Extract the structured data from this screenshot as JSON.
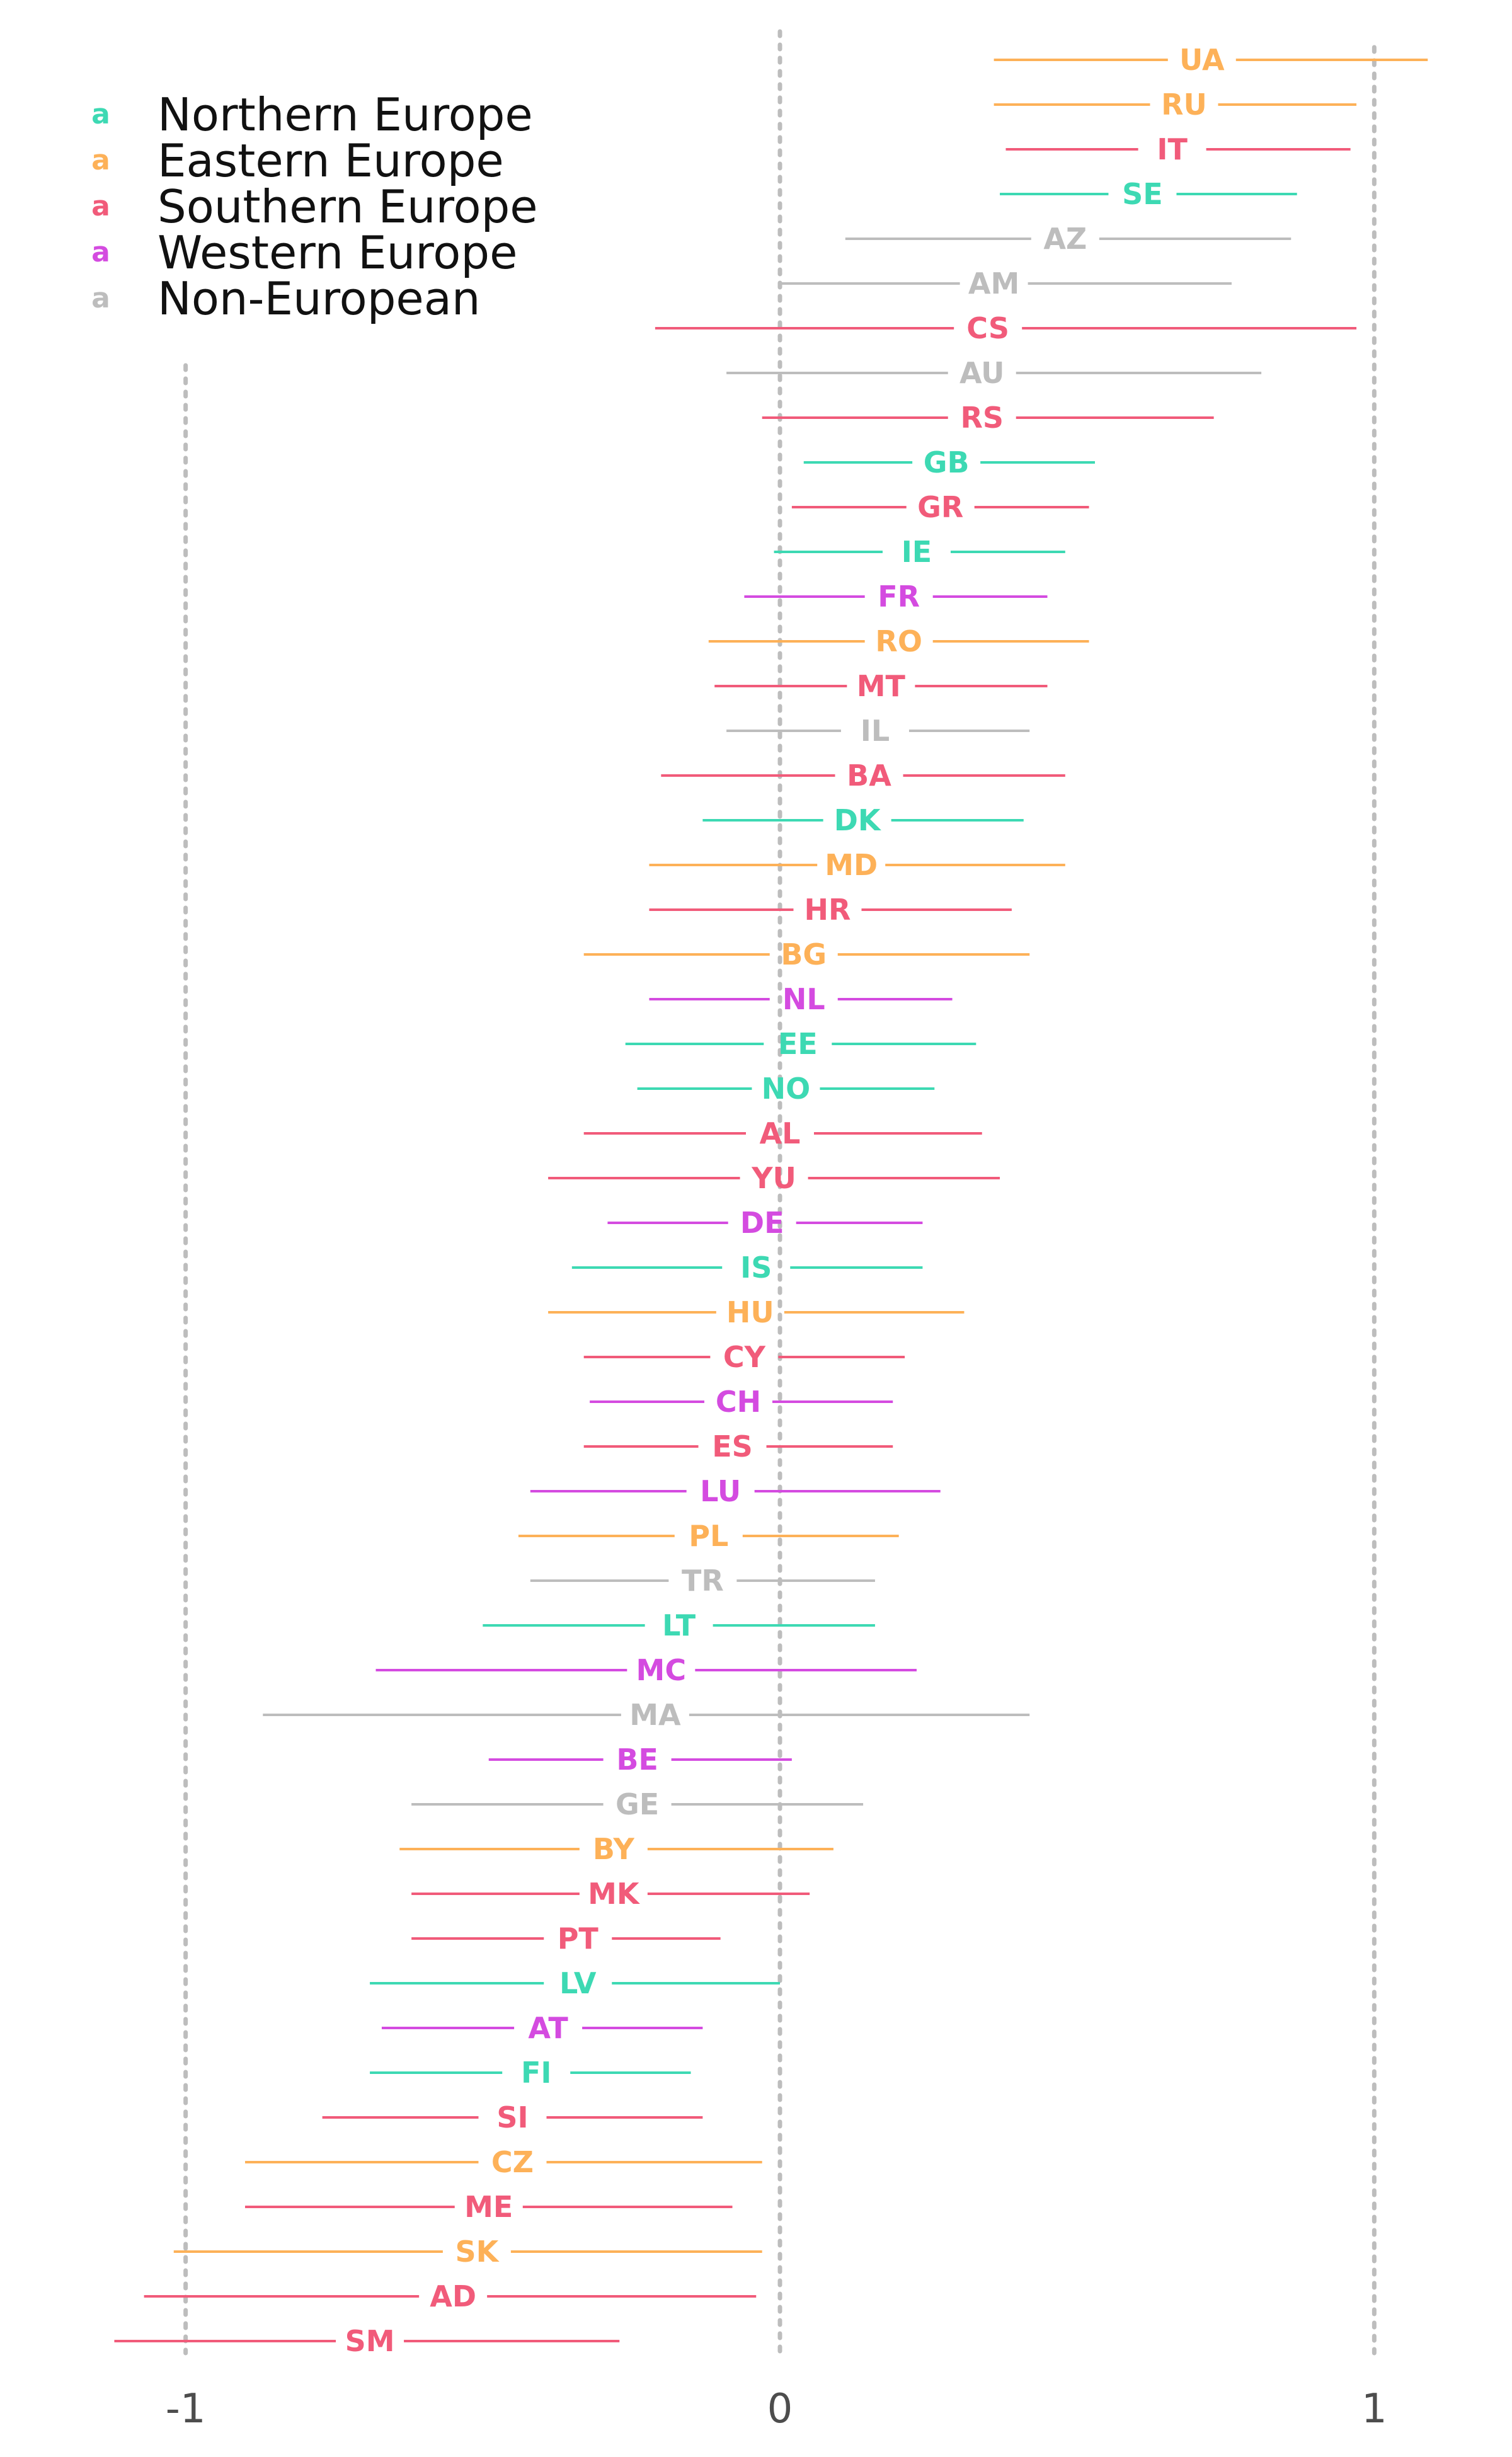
{
  "chart_data": {
    "type": "interval",
    "title": "",
    "xlabel": "",
    "ylabel": "",
    "xlim": [
      -1.13,
      1.13
    ],
    "x_ticks": [
      -1,
      0,
      1
    ],
    "x_tick_labels": [
      "-1",
      "0",
      "1"
    ],
    "grid": false,
    "reference_lines": [
      -1,
      0,
      1
    ],
    "legend": {
      "placement": "top-left",
      "key_glyph": "a",
      "entries": [
        {
          "name": "Northern Europe",
          "color": "#3dd9b3"
        },
        {
          "name": "Eastern Europe",
          "color": "#fdb158"
        },
        {
          "name": "Southern Europe",
          "color": "#f15b7a"
        },
        {
          "name": "Western Europe",
          "color": "#d44be0"
        },
        {
          "name": "Non-European",
          "color": "#bdbdbd"
        }
      ]
    },
    "series": [
      {
        "code": "UA",
        "region": "Eastern Europe",
        "center": 0.71,
        "low": 0.36,
        "high": 1.09
      },
      {
        "code": "RU",
        "region": "Eastern Europe",
        "center": 0.68,
        "low": 0.36,
        "high": 0.97
      },
      {
        "code": "IT",
        "region": "Southern Europe",
        "center": 0.66,
        "low": 0.38,
        "high": 0.96
      },
      {
        "code": "SE",
        "region": "Northern Europe",
        "center": 0.61,
        "low": 0.37,
        "high": 0.87
      },
      {
        "code": "AZ",
        "region": "Non-European",
        "center": 0.48,
        "low": 0.11,
        "high": 0.86
      },
      {
        "code": "AM",
        "region": "Non-European",
        "center": 0.36,
        "low": 0.0,
        "high": 0.76
      },
      {
        "code": "CS",
        "region": "Southern Europe",
        "center": 0.35,
        "low": -0.21,
        "high": 0.97
      },
      {
        "code": "AU",
        "region": "Non-European",
        "center": 0.34,
        "low": -0.09,
        "high": 0.81
      },
      {
        "code": "RS",
        "region": "Southern Europe",
        "center": 0.34,
        "low": -0.03,
        "high": 0.73
      },
      {
        "code": "GB",
        "region": "Northern Europe",
        "center": 0.28,
        "low": 0.04,
        "high": 0.53
      },
      {
        "code": "GR",
        "region": "Southern Europe",
        "center": 0.27,
        "low": 0.02,
        "high": 0.52
      },
      {
        "code": "IE",
        "region": "Northern Europe",
        "center": 0.23,
        "low": -0.01,
        "high": 0.48
      },
      {
        "code": "FR",
        "region": "Western Europe",
        "center": 0.2,
        "low": -0.06,
        "high": 0.45
      },
      {
        "code": "RO",
        "region": "Eastern Europe",
        "center": 0.2,
        "low": -0.12,
        "high": 0.52
      },
      {
        "code": "MT",
        "region": "Southern Europe",
        "center": 0.17,
        "low": -0.11,
        "high": 0.45
      },
      {
        "code": "IL",
        "region": "Non-European",
        "center": 0.16,
        "low": -0.09,
        "high": 0.42
      },
      {
        "code": "BA",
        "region": "Southern Europe",
        "center": 0.15,
        "low": -0.2,
        "high": 0.48
      },
      {
        "code": "DK",
        "region": "Northern Europe",
        "center": 0.13,
        "low": -0.13,
        "high": 0.41
      },
      {
        "code": "MD",
        "region": "Eastern Europe",
        "center": 0.12,
        "low": -0.22,
        "high": 0.48
      },
      {
        "code": "HR",
        "region": "Southern Europe",
        "center": 0.08,
        "low": -0.22,
        "high": 0.39
      },
      {
        "code": "BG",
        "region": "Eastern Europe",
        "center": 0.04,
        "low": -0.33,
        "high": 0.42
      },
      {
        "code": "NL",
        "region": "Western Europe",
        "center": 0.04,
        "low": -0.22,
        "high": 0.29
      },
      {
        "code": "EE",
        "region": "Northern Europe",
        "center": 0.03,
        "low": -0.26,
        "high": 0.33
      },
      {
        "code": "NO",
        "region": "Northern Europe",
        "center": 0.01,
        "low": -0.24,
        "high": 0.26
      },
      {
        "code": "AL",
        "region": "Southern Europe",
        "center": 0.0,
        "low": -0.33,
        "high": 0.34
      },
      {
        "code": "YU",
        "region": "Southern Europe",
        "center": -0.01,
        "low": -0.39,
        "high": 0.37
      },
      {
        "code": "DE",
        "region": "Western Europe",
        "center": -0.03,
        "low": -0.29,
        "high": 0.24
      },
      {
        "code": "IS",
        "region": "Northern Europe",
        "center": -0.04,
        "low": -0.35,
        "high": 0.24
      },
      {
        "code": "HU",
        "region": "Eastern Europe",
        "center": -0.05,
        "low": -0.39,
        "high": 0.31
      },
      {
        "code": "CY",
        "region": "Southern Europe",
        "center": -0.06,
        "low": -0.33,
        "high": 0.21
      },
      {
        "code": "CH",
        "region": "Western Europe",
        "center": -0.07,
        "low": -0.32,
        "high": 0.19
      },
      {
        "code": "ES",
        "region": "Southern Europe",
        "center": -0.08,
        "low": -0.33,
        "high": 0.19
      },
      {
        "code": "LU",
        "region": "Western Europe",
        "center": -0.1,
        "low": -0.42,
        "high": 0.27
      },
      {
        "code": "PL",
        "region": "Eastern Europe",
        "center": -0.12,
        "low": -0.44,
        "high": 0.2
      },
      {
        "code": "TR",
        "region": "Non-European",
        "center": -0.13,
        "low": -0.42,
        "high": 0.16
      },
      {
        "code": "LT",
        "region": "Northern Europe",
        "center": -0.17,
        "low": -0.5,
        "high": 0.16
      },
      {
        "code": "MC",
        "region": "Western Europe",
        "center": -0.2,
        "low": -0.68,
        "high": 0.23
      },
      {
        "code": "MA",
        "region": "Non-European",
        "center": -0.21,
        "low": -0.87,
        "high": 0.42
      },
      {
        "code": "BE",
        "region": "Western Europe",
        "center": -0.24,
        "low": -0.49,
        "high": 0.02
      },
      {
        "code": "GE",
        "region": "Non-European",
        "center": -0.24,
        "low": -0.62,
        "high": 0.14
      },
      {
        "code": "BY",
        "region": "Eastern Europe",
        "center": -0.28,
        "low": -0.64,
        "high": 0.09
      },
      {
        "code": "MK",
        "region": "Southern Europe",
        "center": -0.28,
        "low": -0.62,
        "high": 0.05
      },
      {
        "code": "PT",
        "region": "Southern Europe",
        "center": -0.34,
        "low": -0.62,
        "high": -0.1
      },
      {
        "code": "LV",
        "region": "Northern Europe",
        "center": -0.34,
        "low": -0.69,
        "high": 0.0
      },
      {
        "code": "AT",
        "region": "Western Europe",
        "center": -0.39,
        "low": -0.67,
        "high": -0.13
      },
      {
        "code": "FI",
        "region": "Northern Europe",
        "center": -0.41,
        "low": -0.69,
        "high": -0.15
      },
      {
        "code": "SI",
        "region": "Southern Europe",
        "center": -0.45,
        "low": -0.77,
        "high": -0.13
      },
      {
        "code": "CZ",
        "region": "Eastern Europe",
        "center": -0.45,
        "low": -0.9,
        "high": -0.03
      },
      {
        "code": "ME",
        "region": "Southern Europe",
        "center": -0.49,
        "low": -0.9,
        "high": -0.08
      },
      {
        "code": "SK",
        "region": "Eastern Europe",
        "center": -0.51,
        "low": -1.02,
        "high": -0.03
      },
      {
        "code": "AD",
        "region": "Southern Europe",
        "center": -0.55,
        "low": -1.07,
        "high": -0.04
      },
      {
        "code": "SM",
        "region": "Southern Europe",
        "center": -0.69,
        "low": -1.12,
        "high": -0.27
      }
    ]
  }
}
